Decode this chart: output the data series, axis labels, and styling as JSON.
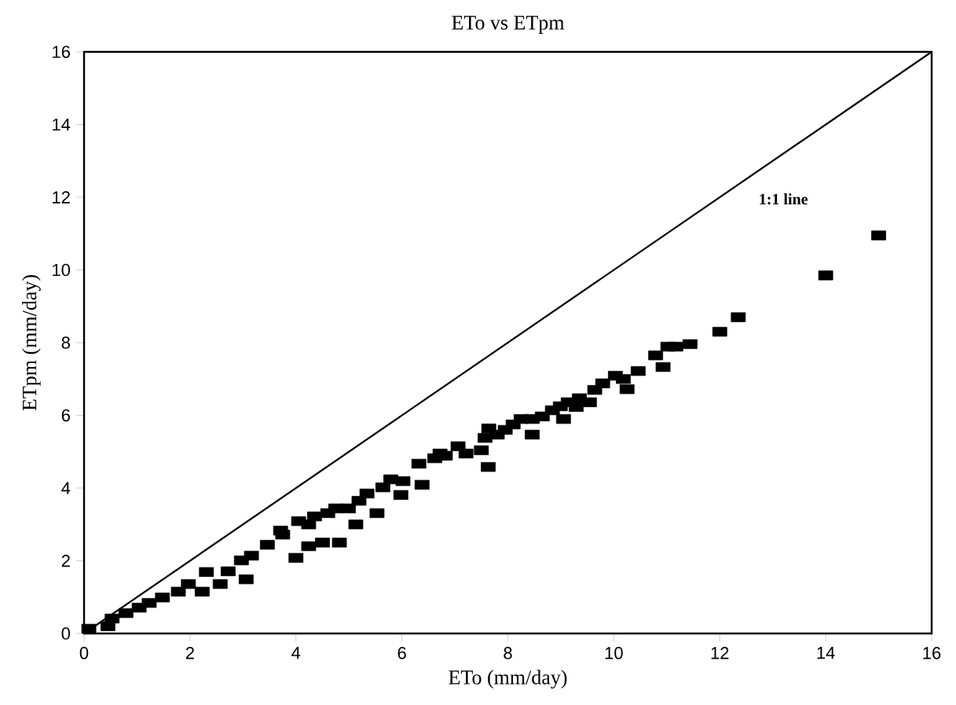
{
  "chart_data": {
    "type": "scatter",
    "title": "ETo vs ETpm",
    "xlabel": "ETo (mm/day)",
    "ylabel": "ETpm (mm/day)",
    "xlim": [
      0,
      16
    ],
    "ylim": [
      0,
      16
    ],
    "xticks": [
      0,
      2,
      4,
      6,
      8,
      10,
      12,
      14,
      16
    ],
    "yticks": [
      0,
      2,
      4,
      6,
      8,
      10,
      12,
      14,
      16
    ],
    "grid": false,
    "marker": "square",
    "annotations": [
      "1:1 line"
    ],
    "series": [
      {
        "color": "#000000",
        "x": [
          0.09,
          0.45,
          0.53,
          0.79,
          1.04,
          1.23,
          1.48,
          1.78,
          1.97,
          2.23,
          2.31,
          2.57,
          2.72,
          2.97,
          3.06,
          3.16,
          3.46,
          3.71,
          3.75,
          4.0,
          4.05,
          4.24,
          4.24,
          4.35,
          4.5,
          4.6,
          4.75,
          4.82,
          4.99,
          5.13,
          5.19,
          5.34,
          5.53,
          5.64,
          5.79,
          5.98,
          6.02,
          6.32,
          6.38,
          6.62,
          6.72,
          6.82,
          7.06,
          7.21,
          7.5,
          7.57,
          7.63,
          7.64,
          7.8,
          7.95,
          8.1,
          8.25,
          8.46,
          8.46,
          8.65,
          8.84,
          8.99,
          9.05,
          9.14,
          9.29,
          9.35,
          9.54,
          9.64,
          9.79,
          10.03,
          10.18,
          10.25,
          10.46,
          10.79,
          10.93,
          11.02,
          11.17,
          11.44,
          12.0,
          12.35,
          14.0,
          15.0
        ],
        "values": [
          0.13,
          0.2,
          0.41,
          0.56,
          0.71,
          0.84,
          0.99,
          1.15,
          1.36,
          1.15,
          1.69,
          1.36,
          1.71,
          2.01,
          1.49,
          2.14,
          2.44,
          2.83,
          2.72,
          2.08,
          3.09,
          3.0,
          2.4,
          3.22,
          2.5,
          3.31,
          3.44,
          2.5,
          3.44,
          3.0,
          3.65,
          3.85,
          3.31,
          4.02,
          4.24,
          3.81,
          4.19,
          4.67,
          4.09,
          4.82,
          4.95,
          4.89,
          5.15,
          4.95,
          5.04,
          5.38,
          4.58,
          5.64,
          5.47,
          5.6,
          5.75,
          5.9,
          5.9,
          5.47,
          5.97,
          6.14,
          6.25,
          5.9,
          6.36,
          6.23,
          6.47,
          6.36,
          6.7,
          6.88,
          7.09,
          7.0,
          6.72,
          7.22,
          7.65,
          7.33,
          7.89,
          7.89,
          7.96,
          8.3,
          8.7,
          9.85,
          10.95
        ]
      },
      {
        "type": "line",
        "color": "#000000",
        "marker": "none",
        "x": [
          0,
          16
        ],
        "values": [
          0,
          16
        ]
      }
    ]
  }
}
